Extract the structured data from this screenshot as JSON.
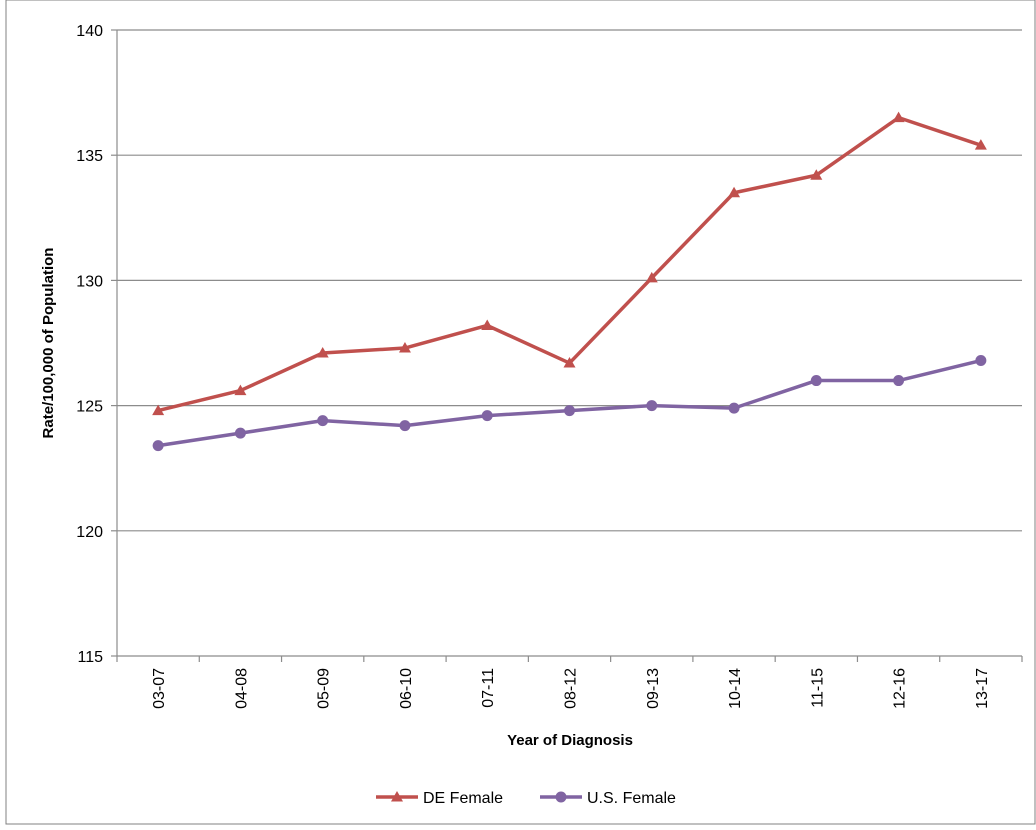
{
  "chart_data": {
    "type": "line",
    "title": "",
    "xlabel": "Year of Diagnosis",
    "ylabel": "Rate/100,000 of Population",
    "categories": [
      "03-07",
      "04-08",
      "05-09",
      "06-10",
      "07-11",
      "08-12",
      "09-13",
      "10-14",
      "11-15",
      "12-16",
      "13-17"
    ],
    "ylim": [
      115,
      140
    ],
    "yticks": [
      115,
      120,
      125,
      130,
      135,
      140
    ],
    "grid": true,
    "legend_position": "bottom",
    "series": [
      {
        "name": "DE Female",
        "color": "#c0504d",
        "marker": "triangle",
        "values": [
          124.8,
          125.6,
          127.1,
          127.3,
          128.2,
          126.7,
          130.1,
          133.5,
          134.2,
          136.5,
          135.4
        ]
      },
      {
        "name": "U.S. Female",
        "color": "#8064a2",
        "marker": "circle",
        "values": [
          123.4,
          123.9,
          124.4,
          124.2,
          124.6,
          124.8,
          125.0,
          124.9,
          126.0,
          126.0,
          126.8
        ]
      }
    ]
  }
}
